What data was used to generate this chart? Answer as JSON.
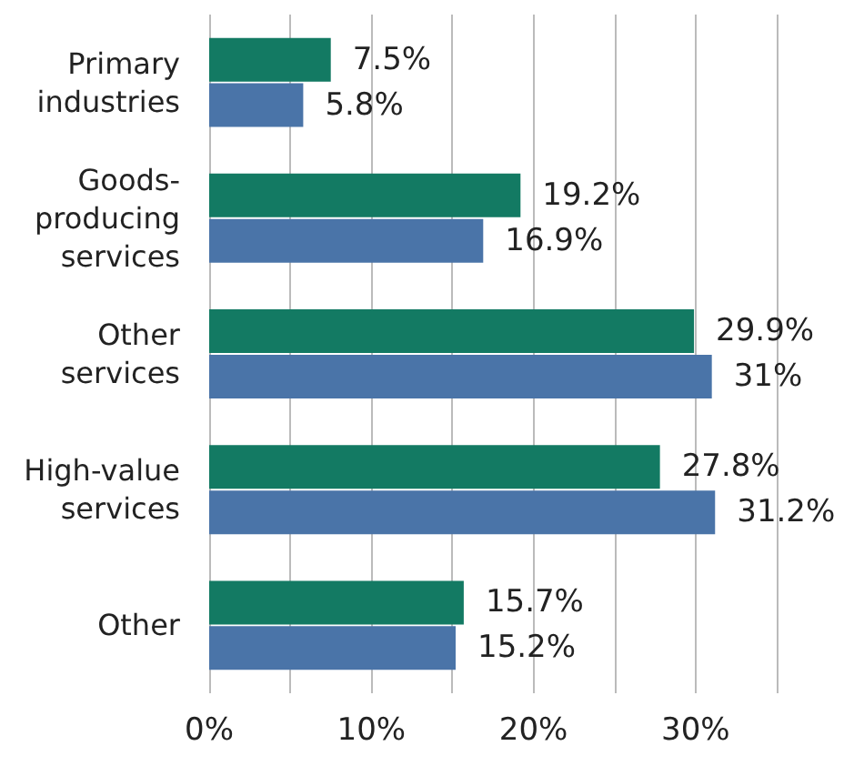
{
  "chart_data": {
    "type": "bar",
    "orientation": "horizontal",
    "categories": [
      "Primary industries",
      "Goods-producing services",
      "Other services",
      "High-value services",
      "Other"
    ],
    "series": [
      {
        "color": "#137a63",
        "values": [
          7.5,
          19.2,
          29.9,
          27.8,
          15.7
        ],
        "value_labels": [
          "7.5%",
          "19.2%",
          "29.9%",
          "27.8%",
          "15.7%"
        ]
      },
      {
        "color": "#4a74a8",
        "values": [
          5.8,
          16.9,
          31,
          31.2,
          15.2
        ],
        "value_labels": [
          "5.8%",
          "16.9%",
          "31%",
          "31.2%",
          "15.2%"
        ]
      }
    ],
    "xlim": [
      0,
      35
    ],
    "xticks": [
      {
        "value": 0,
        "label": "0%"
      },
      {
        "value": 5,
        "label": null
      },
      {
        "value": 10,
        "label": "10%"
      },
      {
        "value": 15,
        "label": null
      },
      {
        "value": 20,
        "label": "20%"
      },
      {
        "value": 25,
        "label": null
      },
      {
        "value": 30,
        "label": "30%"
      },
      {
        "value": 35,
        "label": null
      }
    ],
    "grid": "x"
  }
}
